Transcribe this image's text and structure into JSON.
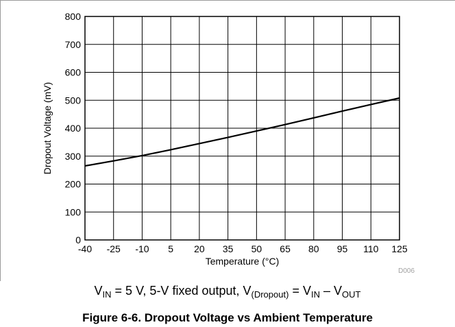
{
  "chart_data": {
    "type": "line",
    "title": "",
    "xlabel": "Temperature (°C)",
    "ylabel": "Dropout Voltage (mV)",
    "xlim": [
      -40,
      125
    ],
    "ylim": [
      0,
      800
    ],
    "x_ticks": [
      -40,
      -25,
      -10,
      5,
      20,
      35,
      50,
      65,
      80,
      95,
      110,
      125
    ],
    "y_ticks": [
      0,
      100,
      200,
      300,
      400,
      500,
      600,
      700,
      800
    ],
    "grid": true,
    "legend": "none",
    "series": [
      {
        "color": "#000000",
        "x": [
          -40,
          -25,
          -10,
          5,
          20,
          35,
          50,
          65,
          80,
          95,
          110,
          125
        ],
        "y": [
          265,
          283,
          302,
          323,
          345,
          367,
          390,
          413,
          437,
          461,
          485,
          508
        ]
      }
    ]
  },
  "figure_code": "D006",
  "condition": {
    "v1": "V",
    "v1_sub": "IN",
    "text1": " = 5 V, 5-V fixed output, V",
    "v2_sub": "(Dropout)",
    "text2": " = V",
    "v3_sub": "IN",
    "text3": " – V",
    "v4_sub": "OUT"
  },
  "caption": "Figure 6-6. Dropout Voltage vs Ambient Temperature"
}
